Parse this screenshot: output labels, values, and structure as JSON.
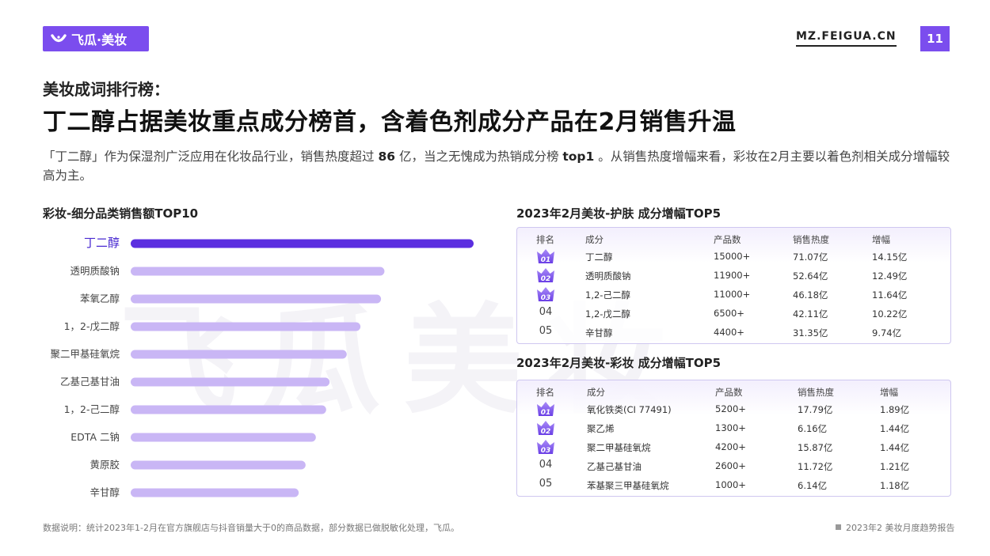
{
  "header": {
    "logo_text": "飞瓜·美妆",
    "site_url": "MZ.FEIGUA.CN",
    "page_number": "11"
  },
  "watermark": "飞瓜美妆",
  "kicker": "美妆成词排行榜：",
  "headline": "丁二醇占据美妆重点成分榜首，含着色剂成分产品在2月销售升温",
  "description": {
    "part1": "「丁二醇」作为保湿剂广泛应用在化妆品行业，销售热度超过 ",
    "num1": "86",
    "part2": " 亿，当之无愧成为热销成分榜 ",
    "num2": "top1",
    "part3": " 。从销售热度增幅来看，彩妆在2月主要以着色剂相关成分增幅较高为主。"
  },
  "chart_data": {
    "type": "bar",
    "orientation": "horizontal",
    "title": "彩妆-细分品类销售额TOP10",
    "categories": [
      "丁二醇",
      "透明质酸钠",
      "苯氧乙醇",
      "1，2-戊二醇",
      "聚二甲基硅氧烷",
      "乙基己基甘油",
      "1，2-己二醇",
      "EDTA 二钠",
      "黄原胶",
      "辛甘醇"
    ],
    "values": [
      100,
      74,
      73,
      67,
      63,
      58,
      57,
      54,
      51,
      49
    ],
    "highlight_index": 0,
    "colors": {
      "highlight": "#5b2ee0",
      "bar": "#c9b6f5",
      "highlight_label": "#4a2bd1"
    }
  },
  "tables": [
    {
      "title": "2023年2月美妆-护肤 成分增幅TOP5",
      "headers": [
        "排名",
        "成分",
        "产品数",
        "销售热度",
        "增幅"
      ],
      "rows": [
        {
          "rank": "01",
          "name": "丁二醇",
          "count": "15000+",
          "heat": "71.07亿",
          "growth": "14.15亿"
        },
        {
          "rank": "02",
          "name": "透明质酸钠",
          "count": "11900+",
          "heat": "52.64亿",
          "growth": "12.49亿"
        },
        {
          "rank": "03",
          "name": "1,2-己二醇",
          "count": "11000+",
          "heat": "46.18亿",
          "growth": "11.64亿"
        },
        {
          "rank": "04",
          "name": "1,2-戊二醇",
          "count": "6500+",
          "heat": "42.11亿",
          "growth": "10.22亿"
        },
        {
          "rank": "05",
          "name": "辛甘醇",
          "count": "4400+",
          "heat": "31.35亿",
          "growth": "9.74亿"
        }
      ]
    },
    {
      "title": "2023年2月美妆-彩妆 成分增幅TOP5",
      "headers": [
        "排名",
        "成分",
        "产品数",
        "销售热度",
        "增幅"
      ],
      "rows": [
        {
          "rank": "01",
          "name": "氧化铁类(CI 77491)",
          "count": "5200+",
          "heat": "17.79亿",
          "growth": "1.89亿"
        },
        {
          "rank": "02",
          "name": "聚乙烯",
          "count": "1300+",
          "heat": "6.16亿",
          "growth": "1.44亿"
        },
        {
          "rank": "03",
          "name": "聚二甲基硅氧烷",
          "count": "4200+",
          "heat": "15.87亿",
          "growth": "1.44亿"
        },
        {
          "rank": "04",
          "name": "乙基己基甘油",
          "count": "2600+",
          "heat": "11.72亿",
          "growth": "1.21亿"
        },
        {
          "rank": "05",
          "name": "苯基聚三甲基硅氧烷",
          "count": "1000+",
          "heat": "6.14亿",
          "growth": "1.18亿"
        }
      ]
    }
  ],
  "footer": {
    "note": "数据说明：统计2023年1-2月在官方旗舰店与抖音销量大于0的商品数据，部分数据已做脱敏化处理，飞瓜。",
    "report": "2023年2   美妆月度趋势报告"
  },
  "colors": {
    "brand": "#7b4dee"
  }
}
